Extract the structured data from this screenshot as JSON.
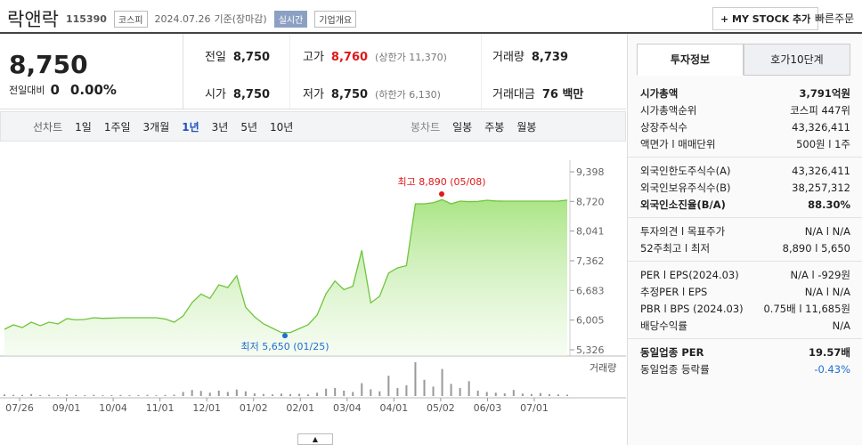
{
  "header": {
    "name": "락앤락",
    "code": "115390",
    "market": "코스피",
    "date": "2024.07.26",
    "basis": "기준(장마감)",
    "realtime": "실시간",
    "overview": "기업개요",
    "mystock": "MY STOCK 추가",
    "quick_order": "빠른주문"
  },
  "quote": {
    "price": "8,750",
    "change_label": "전일대비",
    "change": "0",
    "change_rate": "0.00%",
    "stats": [
      {
        "label": "전일",
        "value": "8,750"
      },
      {
        "label": "고가",
        "value": "8,760",
        "note": "(상한가 11,370)",
        "color": "#e01818"
      },
      {
        "label": "거래량",
        "value": "8,739"
      },
      {
        "label": "시가",
        "value": "8,750"
      },
      {
        "label": "저가",
        "value": "8,750",
        "note": "(하한가 6,130)"
      },
      {
        "label": "거래대금",
        "value": "76 백만"
      }
    ]
  },
  "periods": {
    "line_label": "선차트",
    "line": [
      "1일",
      "1주일",
      "3개월",
      "1년",
      "3년",
      "5년",
      "10년"
    ],
    "selected": "1년",
    "candle_label": "봉차트",
    "candle": [
      "일봉",
      "주봉",
      "월봉"
    ]
  },
  "chart_data": {
    "type": "area",
    "color": "#6fc53d",
    "values": [
      5794,
      5896,
      5835,
      5957,
      5876,
      5957,
      5917,
      6039,
      6010,
      6020,
      6059,
      6045,
      6050,
      6059,
      6059,
      6059,
      6059,
      6059,
      6030,
      5957,
      6100,
      6405,
      6600,
      6500,
      6812,
      6750,
      7020,
      6300,
      6080,
      5920,
      5820,
      5720,
      5720,
      5810,
      5900,
      6120,
      6609,
      6900,
      6700,
      6780,
      7600,
      6400,
      6550,
      7080,
      7200,
      7250,
      8665,
      8665,
      8690,
      8760,
      8665,
      8726,
      8715,
      8720,
      8746,
      8730,
      8726,
      8726,
      8726,
      8726,
      8726,
      8726,
      8726,
      8750
    ],
    "volume": [
      12000,
      9000,
      8000,
      15000,
      7000,
      9000,
      6000,
      11000,
      8000,
      7000,
      9000,
      6000,
      7000,
      8000,
      6000,
      7000,
      9000,
      6000,
      8000,
      10000,
      30000,
      45000,
      38000,
      25000,
      40000,
      30000,
      48000,
      35000,
      20000,
      15000,
      12000,
      18000,
      14000,
      16000,
      12000,
      25000,
      55000,
      60000,
      40000,
      30000,
      95000,
      50000,
      35000,
      150000,
      60000,
      80000,
      250000,
      120000,
      70000,
      200000,
      90000,
      60000,
      110000,
      40000,
      30000,
      25000,
      20000,
      45000,
      18000,
      15000,
      22000,
      14000,
      12000,
      10000
    ],
    "ylim": [
      5326,
      9398
    ],
    "yticks": [
      {
        "value": 9398,
        "label": "9,398"
      },
      {
        "value": 8720,
        "label": "8,720"
      },
      {
        "value": 8041,
        "label": "8,041"
      },
      {
        "value": 7362,
        "label": "7,362"
      },
      {
        "value": 6683,
        "label": "6,683"
      },
      {
        "value": 6005,
        "label": "6,005"
      },
      {
        "value": 5326,
        "label": "5,326"
      }
    ],
    "xticks": [
      "07/26",
      "09/01",
      "10/04",
      "11/01",
      "12/01",
      "01/02",
      "02/01",
      "03/04",
      "04/01",
      "05/02",
      "06/03",
      "07/01"
    ],
    "high": {
      "label": "최고 8,890 (05/08)",
      "value": 8890,
      "color": "#e01818"
    },
    "low": {
      "label": "최저 5,650 (01/25)",
      "value": 5650,
      "color": "#1e6fd0"
    },
    "volume_label": "거래량"
  },
  "info": {
    "tabs": [
      "투자정보",
      "호가10단계"
    ],
    "sections": [
      [
        {
          "label": "시가총액",
          "value": "3,791억원",
          "bold": true
        },
        {
          "label": "시가총액순위",
          "value": "코스피 447위"
        },
        {
          "label": "상장주식수",
          "value": "43,326,411"
        },
        {
          "label": "액면가 l 매매단위",
          "value": "500원 l 1주"
        }
      ],
      [
        {
          "label": "외국인한도주식수(A)",
          "value": "43,326,411"
        },
        {
          "label": "외국인보유주식수(B)",
          "value": "38,257,312"
        },
        {
          "label": "외국인소진율(B/A)",
          "value": "88.30%",
          "bold": true
        }
      ],
      [
        {
          "label": "투자의견 l 목표주가",
          "value": "N/A l N/A"
        },
        {
          "label": "52주최고 l 최저",
          "value": "8,890 l 5,650"
        }
      ],
      [
        {
          "label": "PER l EPS(2024.03)",
          "value": "N/A l -929원"
        },
        {
          "label": "추정PER l EPS",
          "value": "N/A l N/A"
        },
        {
          "label": "PBR l BPS (2024.03)",
          "value": "0.75배 l 11,685원"
        },
        {
          "label": "배당수익률",
          "value": "N/A"
        }
      ],
      [
        {
          "label": "동일업종 PER",
          "value": "19.57배",
          "bold": true
        },
        {
          "label": "동일업종 등락률",
          "value": "-0.43%",
          "color": "#1e6fd0"
        }
      ]
    ]
  }
}
